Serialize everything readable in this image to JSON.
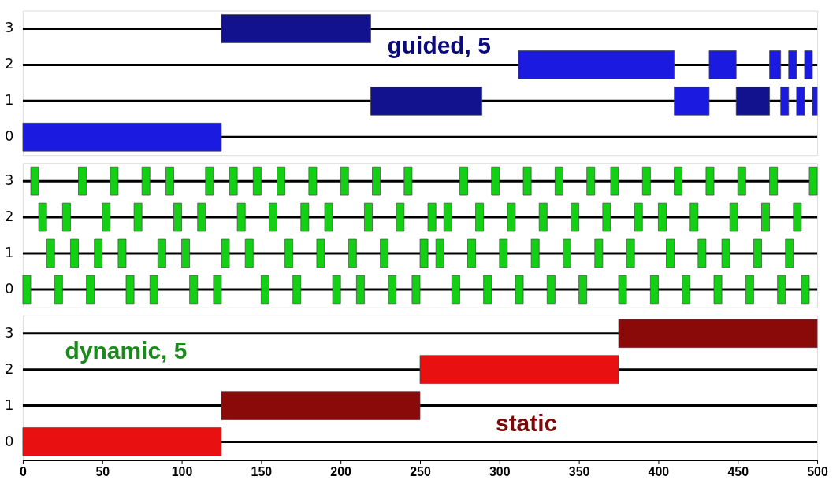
{
  "chart_data": [
    {
      "type": "bar",
      "orientation": "horizontal",
      "tick_labels": "y",
      "xlim": [
        0,
        500
      ],
      "categories": [
        "3",
        "2",
        "1",
        "0"
      ],
      "series": [
        {
          "base": [
            125,
            312,
            219,
            0
          ],
          "values": [
            94,
            98,
            70,
            125
          ],
          "colors": [
            "#12128e",
            "#1a1ae0",
            "#12128e",
            "#1a1ae0"
          ]
        },
        {
          "base": [
            null,
            432,
            410,
            null
          ],
          "values": [
            null,
            17,
            22,
            null
          ],
          "color": "#1a1ae0"
        },
        {
          "base": [
            null,
            470,
            449,
            null
          ],
          "values": [
            null,
            7,
            21,
            null
          ],
          "colors": [
            null,
            "#1a1ae0",
            "#12128e",
            null
          ]
        },
        {
          "base": [
            null,
            482,
            477,
            null
          ],
          "values": [
            null,
            5,
            5,
            null
          ],
          "color": "#1a1ae0"
        },
        {
          "base": [
            null,
            492,
            487,
            null
          ],
          "values": [
            null,
            5,
            5,
            null
          ],
          "color": "#1a1ae0"
        },
        {
          "base": [
            null,
            null,
            497,
            null
          ],
          "values": [
            null,
            null,
            3,
            null
          ],
          "color": "#1a1ae0"
        }
      ],
      "annotations": [
        "guided, 5"
      ]
    },
    {
      "type": "bar",
      "orientation": "horizontal",
      "tick_labels": "y",
      "xlim": [
        0,
        500
      ],
      "categories": [
        "3",
        "2",
        "1",
        "0"
      ],
      "series": [
        {
          "base": [
            5,
            10,
            15,
            0
          ],
          "values": [
            5,
            5,
            5,
            5
          ],
          "color": "#14d014"
        },
        {
          "base": [
            35,
            25,
            30,
            20
          ],
          "values": [
            5,
            5,
            5,
            5
          ],
          "color": "#14d014"
        },
        {
          "base": [
            55,
            50,
            45,
            40
          ],
          "values": [
            5,
            5,
            5,
            5
          ],
          "color": "#14d014"
        },
        {
          "base": [
            75,
            70,
            60,
            65
          ],
          "values": [
            5,
            5,
            5,
            5
          ],
          "color": "#14d014"
        },
        {
          "base": [
            90,
            95,
            85,
            80
          ],
          "values": [
            5,
            5,
            5,
            5
          ],
          "color": "#14d014"
        },
        {
          "base": [
            115,
            110,
            100,
            105
          ],
          "values": [
            5,
            5,
            5,
            5
          ],
          "color": "#14d014"
        },
        {
          "base": [
            130,
            135,
            125,
            120
          ],
          "values": [
            5,
            5,
            5,
            5
          ],
          "color": "#14d014"
        },
        {
          "base": [
            145,
            155,
            140,
            150
          ],
          "values": [
            5,
            5,
            5,
            5
          ],
          "color": "#14d014"
        },
        {
          "base": [
            160,
            175,
            165,
            170
          ],
          "values": [
            5,
            5,
            5,
            5
          ],
          "color": "#14d014"
        },
        {
          "base": [
            180,
            190,
            185,
            195
          ],
          "values": [
            5,
            5,
            5,
            5
          ],
          "color": "#14d014"
        },
        {
          "base": [
            200,
            215,
            205,
            210
          ],
          "values": [
            5,
            5,
            5,
            5
          ],
          "color": "#14d014"
        },
        {
          "base": [
            220,
            235,
            225,
            230
          ],
          "values": [
            5,
            5,
            5,
            5
          ],
          "color": "#14d014"
        },
        {
          "base": [
            240,
            255,
            250,
            245
          ],
          "values": [
            5,
            5,
            5,
            5
          ],
          "color": "#14d014"
        },
        {
          "base": [
            275,
            265,
            260,
            270
          ],
          "values": [
            5,
            5,
            5,
            5
          ],
          "color": "#14d014"
        },
        {
          "base": [
            295,
            285,
            280,
            290
          ],
          "values": [
            5,
            5,
            5,
            5
          ],
          "color": "#14d014"
        },
        {
          "base": [
            315,
            305,
            300,
            310
          ],
          "values": [
            5,
            5,
            5,
            5
          ],
          "color": "#14d014"
        },
        {
          "base": [
            335,
            325,
            320,
            330
          ],
          "values": [
            5,
            5,
            5,
            5
          ],
          "color": "#14d014"
        },
        {
          "base": [
            355,
            345,
            340,
            350
          ],
          "values": [
            5,
            5,
            5,
            5
          ],
          "color": "#14d014"
        },
        {
          "base": [
            370,
            365,
            360,
            375
          ],
          "values": [
            5,
            5,
            5,
            5
          ],
          "color": "#14d014"
        },
        {
          "base": [
            390,
            385,
            380,
            395
          ],
          "values": [
            5,
            5,
            5,
            5
          ],
          "color": "#14d014"
        },
        {
          "base": [
            410,
            400,
            405,
            415
          ],
          "values": [
            5,
            5,
            5,
            5
          ],
          "color": "#14d014"
        },
        {
          "base": [
            430,
            420,
            425,
            435
          ],
          "values": [
            5,
            5,
            5,
            5
          ],
          "color": "#14d014"
        },
        {
          "base": [
            450,
            445,
            440,
            455
          ],
          "values": [
            5,
            5,
            5,
            5
          ],
          "color": "#14d014"
        },
        {
          "base": [
            470,
            465,
            460,
            475
          ],
          "values": [
            5,
            5,
            5,
            5
          ],
          "color": "#14d014"
        },
        {
          "base": [
            495,
            485,
            480,
            490
          ],
          "values": [
            5,
            5,
            5,
            5
          ],
          "color": "#14d014"
        }
      ]
    },
    {
      "type": "bar",
      "orientation": "horizontal",
      "xlim": [
        0,
        500
      ],
      "xticks": [
        0,
        50,
        100,
        150,
        200,
        250,
        300,
        350,
        400,
        450,
        500
      ],
      "categories": [
        "3",
        "2",
        "1",
        "0"
      ],
      "series": [
        {
          "base": [
            375,
            250,
            125,
            0
          ],
          "values": [
            125,
            125,
            125,
            125
          ],
          "colors": [
            "#8a0a0a",
            "#e81010",
            "#8a0a0a",
            "#e81010"
          ]
        }
      ],
      "annotations": [
        "dynamic, 5",
        "static"
      ]
    }
  ]
}
